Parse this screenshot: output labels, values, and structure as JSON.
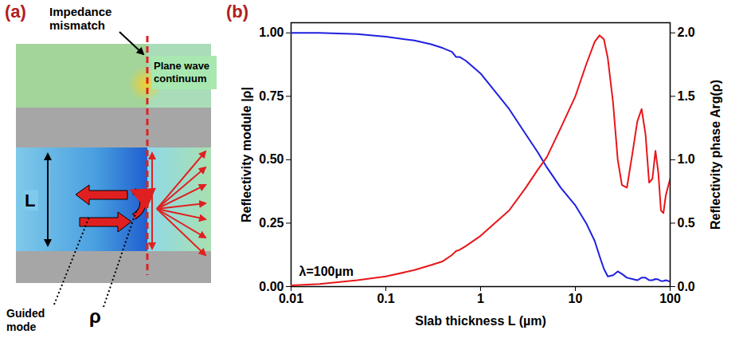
{
  "diagram": {
    "label": "(a)",
    "impedance": [
      "Impedance",
      "mismatch"
    ],
    "continuum": [
      "Plane wave",
      "continuum"
    ],
    "thickness": "L",
    "guided": [
      "Guided",
      "mode"
    ],
    "rho": "ρ"
  },
  "chart_data": {
    "type": "line",
    "label": "(b)",
    "xlabel": "Slab thickness L (µm)",
    "ylabel": "Reflectivity module |ρ|",
    "y2label": "Reflectivity phase Arg(ρ)",
    "annotations": [
      "λ=100µm"
    ],
    "log": "x",
    "grid": false,
    "xlim": [
      0.01,
      100
    ],
    "xticks": [
      0.01,
      0.1,
      1,
      10,
      100
    ],
    "ylim": [
      0,
      1.04
    ],
    "yticks": [
      {
        "value": 0,
        "label": "0.00"
      },
      {
        "value": 0.25,
        "label": "0.25"
      },
      {
        "value": 0.5,
        "label": "0.50"
      },
      {
        "value": 0.75,
        "label": "0.75"
      },
      {
        "value": 1,
        "label": "1.00"
      }
    ],
    "y2lim": [
      0,
      2.08
    ],
    "y2ticks": [
      {
        "value": 0,
        "label": "0.0"
      },
      {
        "value": 0.5,
        "label": "0.5"
      },
      {
        "value": 1,
        "label": "1.0"
      },
      {
        "value": 1.5,
        "label": "1.5"
      },
      {
        "value": 2,
        "label": "2.0"
      }
    ],
    "x": [
      0.01,
      0.02,
      0.05,
      0.1,
      0.2,
      0.3,
      0.4,
      0.5,
      0.55,
      0.6,
      0.7,
      1,
      2,
      3,
      4,
      5,
      7,
      10,
      13,
      16,
      18,
      20,
      22,
      25,
      28,
      31,
      35,
      40,
      45,
      50,
      55,
      60,
      65,
      70,
      75,
      80,
      85,
      90,
      100
    ],
    "series": [
      {
        "name": "Reflectivity module |ρ|",
        "color": "#2020e0",
        "axis": "y",
        "values": [
          1.0,
          1.0,
          0.995,
          0.985,
          0.97,
          0.955,
          0.94,
          0.925,
          0.905,
          0.905,
          0.89,
          0.84,
          0.7,
          0.6,
          0.53,
          0.47,
          0.39,
          0.32,
          0.25,
          0.18,
          0.12,
          0.07,
          0.04,
          0.045,
          0.06,
          0.05,
          0.035,
          0.03,
          0.025,
          0.035,
          0.035,
          0.025,
          0.025,
          0.03,
          0.028,
          0.022,
          0.022,
          0.025,
          0.02
        ]
      },
      {
        "name": "Reflectivity phase Arg(ρ)",
        "color": "#e8161b",
        "axis": "y2",
        "values": [
          0.01,
          0.02,
          0.05,
          0.08,
          0.13,
          0.17,
          0.2,
          0.25,
          0.28,
          0.29,
          0.32,
          0.4,
          0.6,
          0.78,
          0.92,
          1.02,
          1.25,
          1.5,
          1.75,
          1.93,
          1.98,
          1.95,
          1.8,
          1.45,
          1.0,
          0.8,
          0.78,
          1.05,
          1.3,
          1.4,
          1.2,
          0.82,
          0.85,
          1.07,
          0.9,
          0.6,
          0.58,
          0.72,
          0.85
        ]
      }
    ]
  }
}
